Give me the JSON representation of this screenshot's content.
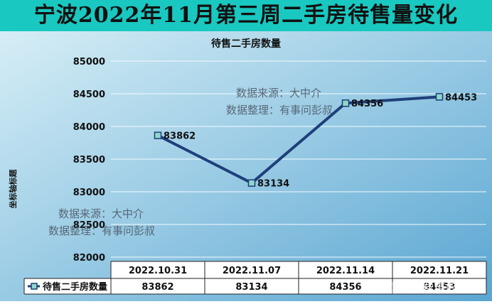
{
  "main_title": "宁波2022年11月第三周二手房待售量变化",
  "watermarks": [
    {
      "line1": "数据来源：大中介",
      "line2": "数据整理：有事问彭叔"
    },
    {
      "line1": "数据来源：大中介",
      "line2": "数据整理：有事问彭叔"
    }
  ],
  "site_watermark": "雪球：有事问彭叔",
  "chart_data": {
    "type": "line",
    "title": "待售二手房数量",
    "ylabel": "坐标轴标题",
    "xlabel": "",
    "categories": [
      "2022.10.31",
      "2022.11.07",
      "2022.11.14",
      "2022.11.21"
    ],
    "series": [
      {
        "name": "待售二手房数量",
        "values": [
          83862,
          83134,
          84356,
          84453
        ]
      }
    ],
    "ylim": [
      82000,
      85000
    ],
    "yticks": [
      82000,
      82500,
      83000,
      83500,
      84000,
      84500,
      85000
    ],
    "grid": true,
    "legend": "data-table",
    "data_table": true,
    "colors": {
      "line": "#1f3f7a",
      "marker_fill": "#8fd6c8",
      "bg_top": "#d2ecf4",
      "bg_bottom": "#5aa9d3"
    }
  }
}
